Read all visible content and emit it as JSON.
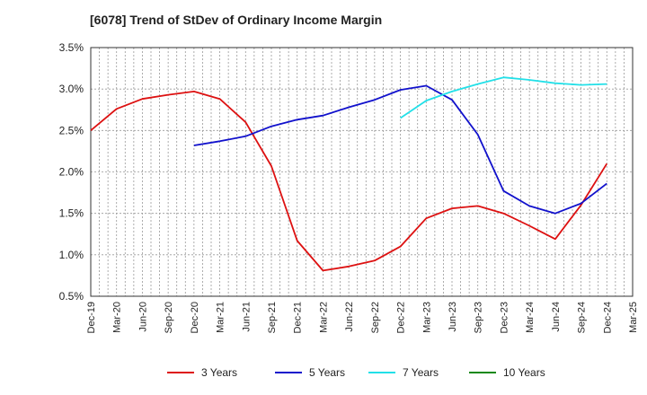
{
  "chart_data": {
    "type": "line",
    "title": "[6078]  Trend of StDev of Ordinary Income Margin",
    "xlabel": "",
    "ylabel": "",
    "ylim": [
      0.5,
      3.5
    ],
    "yticks": [
      0.5,
      1.0,
      1.5,
      2.0,
      2.5,
      3.0,
      3.5
    ],
    "ytick_labels": [
      "0.5%",
      "1.0%",
      "1.5%",
      "2.0%",
      "2.5%",
      "3.0%",
      "3.5%"
    ],
    "x_categories": [
      "Dec-19",
      "Mar-20",
      "Jun-20",
      "Sep-20",
      "Dec-20",
      "Mar-21",
      "Jun-21",
      "Sep-21",
      "Dec-21",
      "Mar-22",
      "Jun-22",
      "Sep-22",
      "Dec-22",
      "Mar-23",
      "Jun-23",
      "Sep-23",
      "Dec-23",
      "Mar-24",
      "Jun-24",
      "Sep-24",
      "Dec-24",
      "Mar-25"
    ],
    "grid": true,
    "legend_position": "bottom",
    "series": [
      {
        "name": "3 Years",
        "color": "#dd1111",
        "x": [
          "Dec-19",
          "Mar-20",
          "Jun-20",
          "Sep-20",
          "Dec-20",
          "Mar-21",
          "Jun-21",
          "Sep-21",
          "Dec-21",
          "Mar-22",
          "Jun-22",
          "Sep-22",
          "Dec-22",
          "Mar-23",
          "Jun-23",
          "Sep-23",
          "Dec-23",
          "Mar-24",
          "Jun-24",
          "Sep-24",
          "Dec-24"
        ],
        "values": [
          2.5,
          2.76,
          2.88,
          2.93,
          2.97,
          2.88,
          2.6,
          2.07,
          1.17,
          0.81,
          0.86,
          0.93,
          1.1,
          1.44,
          1.56,
          1.59,
          1.5,
          1.35,
          1.19,
          1.6,
          2.1
        ]
      },
      {
        "name": "5 Years",
        "color": "#1111cc",
        "x": [
          "Dec-20",
          "Mar-21",
          "Jun-21",
          "Sep-21",
          "Dec-21",
          "Mar-22",
          "Jun-22",
          "Sep-22",
          "Dec-22",
          "Mar-23",
          "Jun-23",
          "Sep-23",
          "Dec-23",
          "Mar-24",
          "Jun-24",
          "Sep-24",
          "Dec-24"
        ],
        "values": [
          2.32,
          2.37,
          2.43,
          2.55,
          2.63,
          2.68,
          2.78,
          2.87,
          2.99,
          3.04,
          2.87,
          2.45,
          1.77,
          1.59,
          1.5,
          1.62,
          1.86
        ]
      },
      {
        "name": "7 Years",
        "color": "#22e0e8",
        "x": [
          "Dec-22",
          "Mar-23",
          "Jun-23",
          "Sep-23",
          "Dec-23",
          "Mar-24",
          "Jun-24",
          "Sep-24",
          "Dec-24"
        ],
        "values": [
          2.65,
          2.86,
          2.97,
          3.06,
          3.14,
          3.11,
          3.07,
          3.05,
          3.06
        ]
      },
      {
        "name": "10 Years",
        "color": "#118811",
        "x": [],
        "values": []
      }
    ]
  }
}
